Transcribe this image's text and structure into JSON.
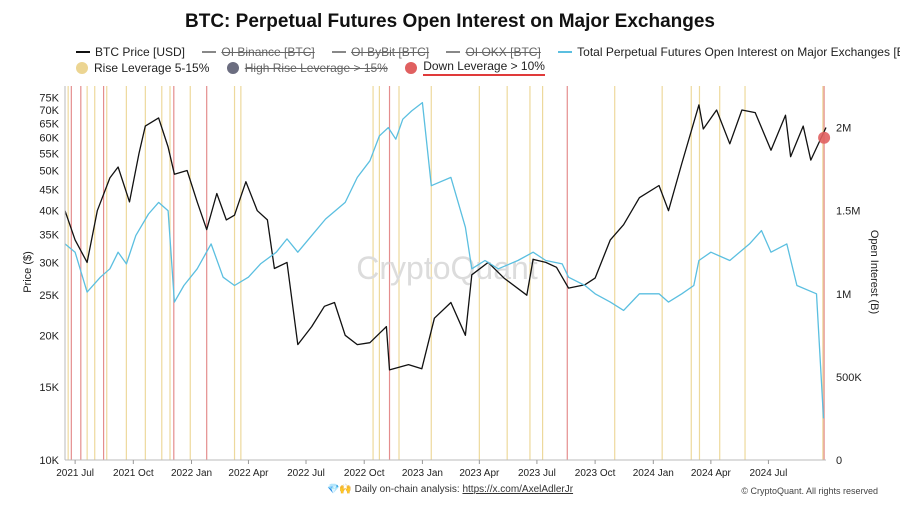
{
  "chart_data": {
    "type": "line",
    "title": "BTC: Perpetual Futures Open Interest on Major Exchanges",
    "xlabel": "",
    "ylabel_left": "Price ($)",
    "ylabel_right": "Open Interest (B)",
    "y_left_scale": "log",
    "y_left_range": [
      10000,
      80000
    ],
    "y_right_range": [
      0,
      2250000
    ],
    "x_range": [
      "2021-06-15",
      "2024-09-30"
    ],
    "watermark": "CryptoQuant",
    "legend": [
      {
        "name": "BTC Price [USD]",
        "style": "line",
        "color": "#111111",
        "visible": true
      },
      {
        "name": "OI Binance [BTC]",
        "style": "line",
        "color": "#888888",
        "visible": false
      },
      {
        "name": "OI ByBit [BTC]",
        "style": "line",
        "color": "#888888",
        "visible": false
      },
      {
        "name": "OI OKX [BTC]",
        "style": "line",
        "color": "#888888",
        "visible": false
      },
      {
        "name": "Total Perpetual Futures Open Interest on Major Exchanges [BTC]",
        "style": "line",
        "color": "#5bbfe0",
        "visible": true
      },
      {
        "name": "Rise Leverage 5-15%",
        "style": "dot",
        "color": "#ecd592",
        "visible": true
      },
      {
        "name": "High Rise Leverage > 15%",
        "style": "dot",
        "color": "#6b6d80",
        "visible": false
      },
      {
        "name": "Down Leverage > 10%",
        "style": "dot",
        "color": "#e06060",
        "visible": true,
        "highlighted": true
      }
    ],
    "x_ticks": [
      {
        "date": "2021-07-01",
        "label": "2021 Jul"
      },
      {
        "date": "2021-10-01",
        "label": "2021 Oct"
      },
      {
        "date": "2022-01-01",
        "label": "2022 Jan"
      },
      {
        "date": "2022-04-01",
        "label": "2022 Apr"
      },
      {
        "date": "2022-07-01",
        "label": "2022 Jul"
      },
      {
        "date": "2022-10-01",
        "label": "2022 Oct"
      },
      {
        "date": "2023-01-01",
        "label": "2023 Jan"
      },
      {
        "date": "2023-04-01",
        "label": "2023 Apr"
      },
      {
        "date": "2023-07-01",
        "label": "2023 Jul"
      },
      {
        "date": "2023-10-01",
        "label": "2023 Oct"
      },
      {
        "date": "2024-01-01",
        "label": "2024 Jan"
      },
      {
        "date": "2024-04-01",
        "label": "2024 Apr"
      },
      {
        "date": "2024-07-01",
        "label": "2024 Jul"
      }
    ],
    "y_left_ticks": [
      {
        "value": 10000,
        "label": "10K"
      },
      {
        "value": 15000,
        "label": "15K"
      },
      {
        "value": 20000,
        "label": "20K"
      },
      {
        "value": 25000,
        "label": "25K"
      },
      {
        "value": 30000,
        "label": "30K"
      },
      {
        "value": 35000,
        "label": "35K"
      },
      {
        "value": 40000,
        "label": "40K"
      },
      {
        "value": 45000,
        "label": "45K"
      },
      {
        "value": 50000,
        "label": "50K"
      },
      {
        "value": 55000,
        "label": "55K"
      },
      {
        "value": 60000,
        "label": "60K"
      },
      {
        "value": 65000,
        "label": "65K"
      },
      {
        "value": 70000,
        "label": "70K"
      },
      {
        "value": 75000,
        "label": "75K"
      }
    ],
    "y_right_ticks": [
      {
        "value": 0,
        "label": "0"
      },
      {
        "value": 500000,
        "label": "500K"
      },
      {
        "value": 1000000,
        "label": "1M"
      },
      {
        "value": 1500000,
        "label": "1.5M"
      },
      {
        "value": 2000000,
        "label": "2M"
      }
    ],
    "series": [
      {
        "name": "BTC Price [USD]",
        "axis": "left",
        "color": "#111111",
        "points": [
          [
            "2021-06-15",
            40000
          ],
          [
            "2021-07-01",
            34000
          ],
          [
            "2021-07-20",
            30000
          ],
          [
            "2021-08-05",
            40000
          ],
          [
            "2021-08-25",
            48000
          ],
          [
            "2021-09-07",
            51000
          ],
          [
            "2021-09-25",
            42000
          ],
          [
            "2021-10-10",
            55000
          ],
          [
            "2021-10-20",
            64000
          ],
          [
            "2021-11-10",
            67000
          ],
          [
            "2021-11-25",
            57000
          ],
          [
            "2021-12-05",
            49000
          ],
          [
            "2021-12-25",
            50000
          ],
          [
            "2022-01-10",
            42000
          ],
          [
            "2022-01-25",
            36000
          ],
          [
            "2022-02-10",
            44000
          ],
          [
            "2022-02-25",
            38000
          ],
          [
            "2022-03-10",
            39000
          ],
          [
            "2022-03-28",
            47000
          ],
          [
            "2022-04-15",
            40000
          ],
          [
            "2022-05-01",
            38000
          ],
          [
            "2022-05-12",
            29000
          ],
          [
            "2022-06-01",
            30000
          ],
          [
            "2022-06-18",
            19000
          ],
          [
            "2022-07-10",
            21000
          ],
          [
            "2022-07-30",
            23500
          ],
          [
            "2022-08-15",
            24000
          ],
          [
            "2022-09-01",
            20000
          ],
          [
            "2022-09-20",
            19000
          ],
          [
            "2022-10-10",
            19200
          ],
          [
            "2022-11-05",
            21000
          ],
          [
            "2022-11-10",
            16500
          ],
          [
            "2022-12-10",
            17000
          ],
          [
            "2022-12-31",
            16600
          ],
          [
            "2023-01-20",
            22000
          ],
          [
            "2023-02-15",
            24000
          ],
          [
            "2023-03-10",
            20000
          ],
          [
            "2023-03-20",
            28000
          ],
          [
            "2023-04-15",
            30000
          ],
          [
            "2023-05-10",
            27500
          ],
          [
            "2023-06-15",
            25000
          ],
          [
            "2023-06-25",
            30500
          ],
          [
            "2023-07-15",
            30000
          ],
          [
            "2023-08-01",
            29200
          ],
          [
            "2023-08-20",
            26000
          ],
          [
            "2023-09-15",
            26500
          ],
          [
            "2023-10-01",
            27500
          ],
          [
            "2023-10-25",
            34000
          ],
          [
            "2023-11-15",
            37000
          ],
          [
            "2023-12-10",
            43000
          ],
          [
            "2024-01-10",
            46000
          ],
          [
            "2024-01-25",
            40000
          ],
          [
            "2024-02-15",
            52000
          ],
          [
            "2024-03-13",
            72000
          ],
          [
            "2024-03-20",
            63000
          ],
          [
            "2024-04-10",
            70000
          ],
          [
            "2024-05-01",
            58000
          ],
          [
            "2024-05-20",
            70000
          ],
          [
            "2024-06-10",
            69000
          ],
          [
            "2024-07-05",
            56000
          ],
          [
            "2024-07-28",
            68000
          ],
          [
            "2024-08-05",
            54000
          ],
          [
            "2024-08-25",
            64000
          ],
          [
            "2024-09-06",
            53000
          ],
          [
            "2024-09-30",
            63500
          ]
        ]
      },
      {
        "name": "Total Perpetual Futures Open Interest on Major Exchanges [BTC]",
        "axis": "right",
        "color": "#5bbfe0",
        "points": [
          [
            "2021-06-15",
            1300000
          ],
          [
            "2021-07-01",
            1250000
          ],
          [
            "2021-07-20",
            1010000
          ],
          [
            "2021-08-10",
            1100000
          ],
          [
            "2021-08-25",
            1150000
          ],
          [
            "2021-09-07",
            1250000
          ],
          [
            "2021-09-20",
            1180000
          ],
          [
            "2021-10-05",
            1350000
          ],
          [
            "2021-10-25",
            1480000
          ],
          [
            "2021-11-10",
            1550000
          ],
          [
            "2021-11-25",
            1500000
          ],
          [
            "2021-12-05",
            950000
          ],
          [
            "2021-12-20",
            1050000
          ],
          [
            "2022-01-10",
            1150000
          ],
          [
            "2022-02-01",
            1300000
          ],
          [
            "2022-02-20",
            1100000
          ],
          [
            "2022-03-10",
            1050000
          ],
          [
            "2022-04-01",
            1100000
          ],
          [
            "2022-04-20",
            1180000
          ],
          [
            "2022-05-15",
            1250000
          ],
          [
            "2022-06-01",
            1330000
          ],
          [
            "2022-06-18",
            1250000
          ],
          [
            "2022-07-10",
            1350000
          ],
          [
            "2022-08-01",
            1450000
          ],
          [
            "2022-09-01",
            1550000
          ],
          [
            "2022-09-20",
            1700000
          ],
          [
            "2022-10-10",
            1800000
          ],
          [
            "2022-10-25",
            1950000
          ],
          [
            "2022-11-08",
            2000000
          ],
          [
            "2022-11-20",
            1930000
          ],
          [
            "2022-12-01",
            2050000
          ],
          [
            "2022-12-15",
            2100000
          ],
          [
            "2023-01-01",
            2150000
          ],
          [
            "2023-01-15",
            1650000
          ],
          [
            "2023-02-15",
            1700000
          ],
          [
            "2023-03-10",
            1400000
          ],
          [
            "2023-03-20",
            1150000
          ],
          [
            "2023-04-10",
            1200000
          ],
          [
            "2023-05-01",
            1150000
          ],
          [
            "2023-06-01",
            1200000
          ],
          [
            "2023-06-25",
            1250000
          ],
          [
            "2023-07-15",
            1200000
          ],
          [
            "2023-08-10",
            1180000
          ],
          [
            "2023-08-20",
            1100000
          ],
          [
            "2023-09-15",
            1050000
          ],
          [
            "2023-10-01",
            1000000
          ],
          [
            "2023-10-25",
            950000
          ],
          [
            "2023-11-15",
            900000
          ],
          [
            "2023-12-10",
            1000000
          ],
          [
            "2024-01-10",
            1000000
          ],
          [
            "2024-01-25",
            950000
          ],
          [
            "2024-02-15",
            1000000
          ],
          [
            "2024-03-05",
            1050000
          ],
          [
            "2024-03-13",
            1200000
          ],
          [
            "2024-04-01",
            1250000
          ],
          [
            "2024-05-01",
            1200000
          ],
          [
            "2024-06-01",
            1300000
          ],
          [
            "2024-06-20",
            1380000
          ],
          [
            "2024-07-05",
            1250000
          ],
          [
            "2024-07-30",
            1300000
          ],
          [
            "2024-08-15",
            1050000
          ],
          [
            "2024-09-15",
            1000000
          ],
          [
            "2024-09-26",
            250000
          ]
        ]
      }
    ],
    "leverage_markers": {
      "rise": [
        "2021-06-20",
        "2021-07-20",
        "2021-08-01",
        "2021-08-20",
        "2021-09-20",
        "2021-10-20",
        "2021-11-15",
        "2021-11-28",
        "2021-12-30",
        "2022-03-10",
        "2022-03-20",
        "2022-10-15",
        "2022-10-25",
        "2022-11-25",
        "2023-01-15",
        "2023-04-01",
        "2023-05-15",
        "2023-06-20",
        "2023-07-10",
        "2023-11-01",
        "2024-01-15",
        "2024-03-01",
        "2024-03-14",
        "2024-04-15",
        "2024-05-25",
        "2024-09-25"
      ],
      "down": [
        "2021-06-25",
        "2021-07-10",
        "2021-08-15",
        "2021-12-04",
        "2022-01-25",
        "2022-11-10",
        "2023-08-18",
        "2024-09-27"
      ],
      "highlight_dot": {
        "date": "2024-09-27",
        "value": 60000
      }
    }
  },
  "footer": {
    "emoji": "💎🙌",
    "text": "Daily on-chain analysis:",
    "link": "https://x.com/AxelAdlerJr",
    "copyright": "© CryptoQuant. All rights reserved"
  }
}
